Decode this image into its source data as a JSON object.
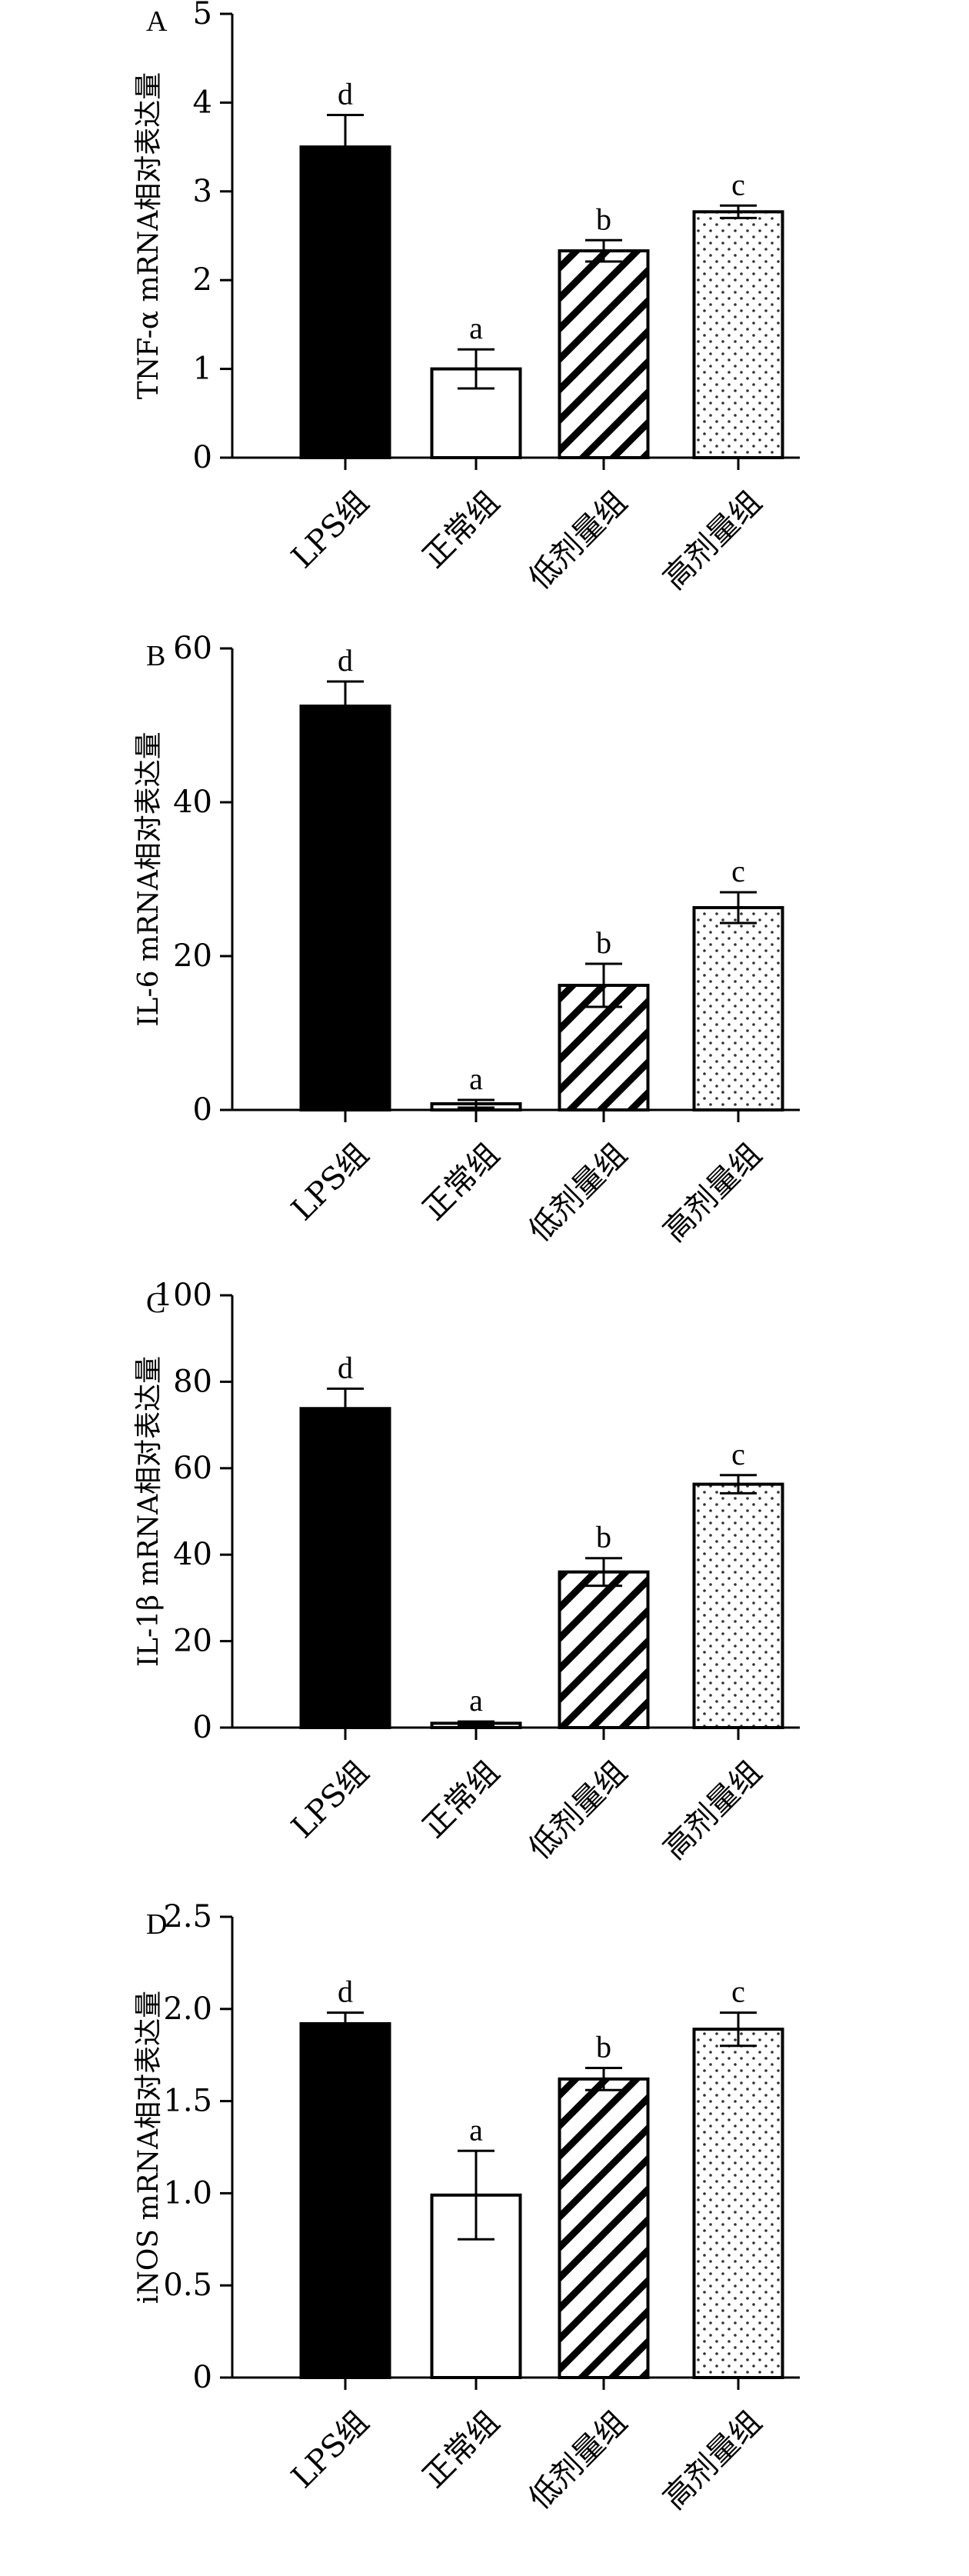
{
  "chart_data": [
    {
      "type": "bar",
      "panel": "A",
      "ylabel": "TNF-α mRNA相对表达量",
      "categories": [
        "LPS组",
        "正常组",
        "低剂量组",
        "高剂量组"
      ],
      "values": [
        3.5,
        1.0,
        2.33,
        2.77
      ],
      "errors": [
        0.36,
        0.22,
        0.12,
        0.07
      ],
      "significance": [
        "d",
        "a",
        "b",
        "c"
      ],
      "ylim": [
        0,
        5
      ],
      "yticks": [
        "0",
        "1",
        "2",
        "3",
        "4",
        "5"
      ],
      "grid": false
    },
    {
      "type": "bar",
      "panel": "B",
      "ylabel": "IL-6 mRNA相对表达量",
      "categories": [
        "LPS组",
        "正常组",
        "低剂量组",
        "高剂量组"
      ],
      "values": [
        52.5,
        0.8,
        16.2,
        26.3
      ],
      "errors": [
        3.2,
        0.5,
        2.8,
        2.0
      ],
      "significance": [
        "d",
        "a",
        "b",
        "c"
      ],
      "ylim": [
        0,
        60
      ],
      "yticks": [
        "0",
        "20",
        "40",
        "60"
      ],
      "grid": false
    },
    {
      "type": "bar",
      "panel": "C",
      "ylabel": "IL-1β mRNA相对表达量",
      "categories": [
        "LPS组",
        "正常组",
        "低剂量组",
        "高剂量组"
      ],
      "values": [
        73.8,
        1.0,
        36.0,
        56.3
      ],
      "errors": [
        4.6,
        0.4,
        3.2,
        2.1
      ],
      "significance": [
        "d",
        "a",
        "b",
        "c"
      ],
      "ylim": [
        0,
        100
      ],
      "yticks": [
        "0",
        "20",
        "40",
        "60",
        "80",
        "100"
      ],
      "grid": false
    },
    {
      "type": "bar",
      "panel": "D",
      "ylabel": "iNOS mRNA相对表达量",
      "categories": [
        "LPS组",
        "正常组",
        "低剂量组",
        "高剂量组"
      ],
      "values": [
        1.92,
        0.99,
        1.62,
        1.89
      ],
      "errors": [
        0.06,
        0.24,
        0.06,
        0.09
      ],
      "significance": [
        "d",
        "a",
        "b",
        "c"
      ],
      "ylim": [
        0,
        2.5
      ],
      "yticks": [
        "0",
        "0.5",
        "1.0",
        "1.5",
        "2.0",
        "2.5"
      ],
      "grid": false
    }
  ],
  "styles": {
    "bar_fills": [
      "solid-black",
      "white",
      "diagonal-hatch",
      "dots"
    ],
    "stroke": "#000000",
    "background": "#ffffff"
  }
}
